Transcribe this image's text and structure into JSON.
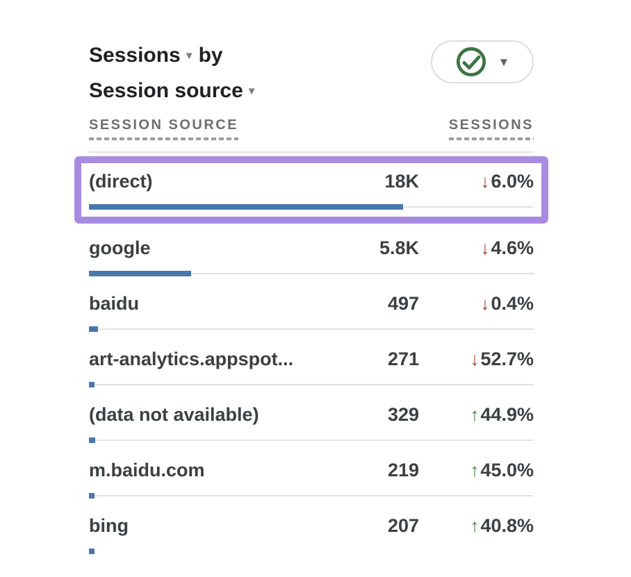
{
  "card": {
    "title": {
      "metric": "Sessions",
      "connector": "by",
      "dimension": "Session source"
    },
    "toolbar": {
      "status_icon": "check-circle",
      "dropdown_icon": "caret-down"
    }
  },
  "icons": {
    "caret": "▼",
    "down_arrow": "↓",
    "up_arrow": "↑"
  },
  "table": {
    "columns": [
      {
        "label": "SESSION SOURCE"
      },
      {
        "label": "SESSIONS"
      }
    ],
    "rows": [
      {
        "source": "(direct)",
        "sessions": "18K",
        "change": "6.0%",
        "direction": "down",
        "bar_pct": 70.6,
        "highlighted": true,
        "show_track": true
      },
      {
        "source": "google",
        "sessions": "5.8K",
        "change": "4.6%",
        "direction": "down",
        "bar_pct": 23.0,
        "highlighted": false,
        "show_track": true
      },
      {
        "source": "baidu",
        "sessions": "497",
        "change": "0.4%",
        "direction": "down",
        "bar_pct": 2.0,
        "highlighted": false,
        "show_track": true
      },
      {
        "source": "art-analytics.appspot...",
        "sessions": "271",
        "change": "52.7%",
        "direction": "down",
        "bar_pct": 1.3,
        "highlighted": false,
        "show_track": true
      },
      {
        "source": "(data not available)",
        "sessions": "329",
        "change": "44.9%",
        "direction": "up",
        "bar_pct": 1.4,
        "highlighted": false,
        "show_track": true
      },
      {
        "source": "m.baidu.com",
        "sessions": "219",
        "change": "45.0%",
        "direction": "up",
        "bar_pct": 1.1,
        "highlighted": false,
        "show_track": true
      },
      {
        "source": "bing",
        "sessions": "207",
        "change": "40.8%",
        "direction": "up",
        "bar_pct": 1.1,
        "highlighted": false,
        "show_track": false
      }
    ]
  },
  "chart_data": {
    "type": "bar",
    "title": "Sessions by Session source",
    "categories": [
      "(direct)",
      "google",
      "baidu",
      "art-analytics.appspot...",
      "(data not available)",
      "m.baidu.com",
      "bing"
    ],
    "values": [
      18000,
      5800,
      497,
      271,
      329,
      219,
      207
    ],
    "change_percent": [
      -6.0,
      -4.6,
      -0.4,
      -52.7,
      44.9,
      45.0,
      40.8
    ],
    "xlabel": "SESSIONS",
    "ylabel": "SESSION SOURCE",
    "legend_position": "none",
    "grid": false
  },
  "colors": {
    "bar": "#4878ae",
    "up": "#3f7d41",
    "down": "#a93c32",
    "highlight_border": "#a78ce2",
    "check_green": "#3d7544",
    "header_gray": "#6e6e6e",
    "text_dark": "#3c4043",
    "divider": "#e2e2e2",
    "pill_border": "#dcdcdc"
  }
}
